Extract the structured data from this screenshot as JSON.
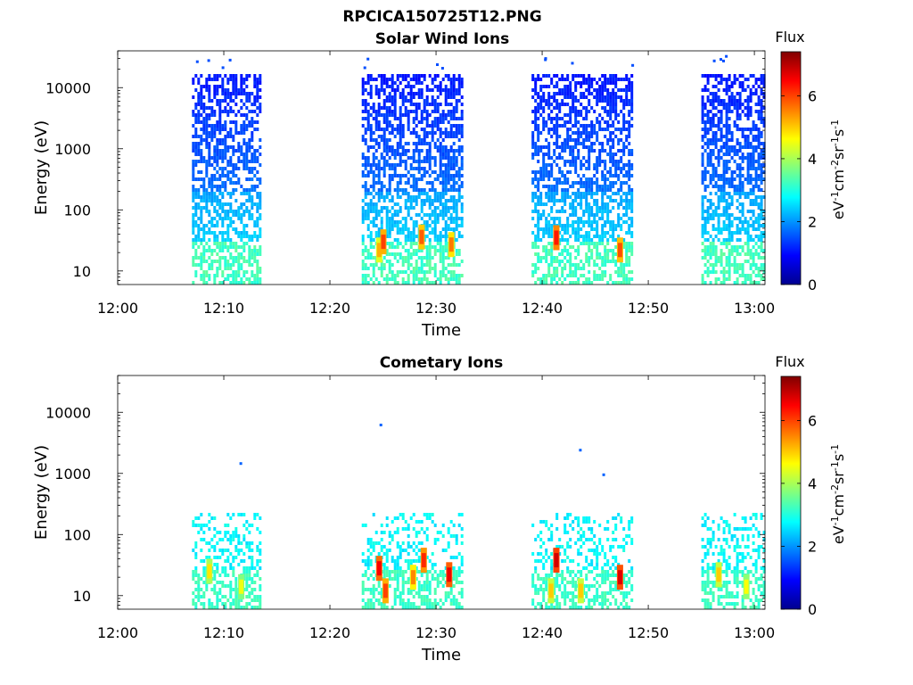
{
  "figure": {
    "title": "RPCICA150725T12.PNG"
  },
  "colormap": "jet",
  "chart_data": [
    {
      "type": "heatmap",
      "title": "Solar Wind Ions",
      "xlabel": "Time",
      "ylabel": "Energy (eV)",
      "x_range": [
        "12:00",
        "13:01"
      ],
      "x_ticks": [
        "12:00",
        "12:10",
        "12:20",
        "12:30",
        "12:40",
        "12:50",
        "13:00"
      ],
      "y_scale": "log",
      "y_range": [
        6,
        40000
      ],
      "y_ticks": [
        "10",
        "100",
        "1000",
        "10000"
      ],
      "colorbar": {
        "label": "Flux",
        "unit": "eV-1cm-2sr-1s-1",
        "range": [
          0,
          7.4
        ],
        "ticks": [
          "0",
          "2",
          "4",
          "6"
        ]
      },
      "intervals": [
        {
          "start": "12:07",
          "end": "12:13.5",
          "max_energy": 15000
        },
        {
          "start": "12:23",
          "end": "12:32.5",
          "max_energy": 15000
        },
        {
          "start": "12:39",
          "end": "12:48.5",
          "max_energy": 15000
        },
        {
          "start": "12:55",
          "end": "13:01",
          "max_energy": 15000
        }
      ],
      "hot_spots": [
        {
          "time": "12:24.6",
          "energy": 22,
          "flux": 5.2
        },
        {
          "time": "12:25.0",
          "energy": 30,
          "flux": 6.0
        },
        {
          "time": "12:28.6",
          "energy": 36,
          "flux": 5.8
        },
        {
          "time": "12:31.4",
          "energy": 27,
          "flux": 5.6
        },
        {
          "time": "12:41.3",
          "energy": 35,
          "flux": 6.3
        },
        {
          "time": "12:47.3",
          "energy": 22,
          "flux": 5.9
        }
      ],
      "grid": false
    },
    {
      "type": "heatmap",
      "title": "Cometary Ions",
      "xlabel": "Time",
      "ylabel": "Energy (eV)",
      "x_range": [
        "12:00",
        "13:01"
      ],
      "x_ticks": [
        "12:00",
        "12:10",
        "12:20",
        "12:30",
        "12:40",
        "12:50",
        "13:00"
      ],
      "y_scale": "log",
      "y_range": [
        6,
        40000
      ],
      "y_ticks": [
        "10",
        "100",
        "1000",
        "10000"
      ],
      "colorbar": {
        "label": "Flux",
        "unit": "eV-1cm-2sr-1s-1",
        "range": [
          0,
          7.4
        ],
        "ticks": [
          "0",
          "2",
          "4",
          "6"
        ]
      },
      "intervals": [
        {
          "start": "12:07",
          "end": "12:13.5",
          "max_energy": 200
        },
        {
          "start": "12:23",
          "end": "12:32.5",
          "max_energy": 200
        },
        {
          "start": "12:39",
          "end": "12:48.5",
          "max_energy": 200
        },
        {
          "start": "12:55",
          "end": "13:01",
          "max_energy": 200
        }
      ],
      "hot_spots": [
        {
          "time": "12:08.6",
          "energy": 25,
          "flux": 4.8
        },
        {
          "time": "12:11.6",
          "energy": 14,
          "flux": 4.5
        },
        {
          "time": "12:24.6",
          "energy": 28,
          "flux": 6.5
        },
        {
          "time": "12:25.2",
          "energy": 12,
          "flux": 6.0
        },
        {
          "time": "12:27.8",
          "energy": 20,
          "flux": 5.5
        },
        {
          "time": "12:28.8",
          "energy": 38,
          "flux": 6.2
        },
        {
          "time": "12:31.2",
          "energy": 22,
          "flux": 6.6
        },
        {
          "time": "12:41.3",
          "energy": 38,
          "flux": 6.8
        },
        {
          "time": "12:40.8",
          "energy": 12,
          "flux": 5.0
        },
        {
          "time": "12:43.6",
          "energy": 12,
          "flux": 5.0
        },
        {
          "time": "12:47.3",
          "energy": 20,
          "flux": 6.7
        },
        {
          "time": "12:56.6",
          "energy": 22,
          "flux": 5.0
        },
        {
          "time": "12:59.2",
          "energy": 14,
          "flux": 4.6
        }
      ],
      "outliers": [
        {
          "time": "12:11.6",
          "energy": 1450
        },
        {
          "time": "12:24.8",
          "energy": 6200
        },
        {
          "time": "12:43.6",
          "energy": 2400
        },
        {
          "time": "12:45.8",
          "energy": 950
        }
      ],
      "grid": false
    }
  ]
}
